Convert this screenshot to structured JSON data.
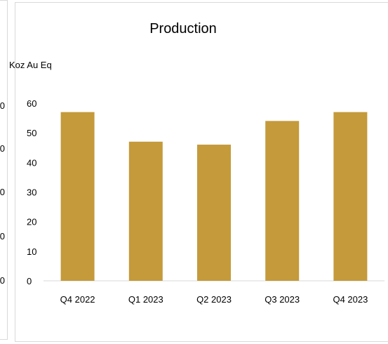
{
  "left_chart_partial": {
    "tick_labels": [
      "0",
      "0",
      "0",
      "0",
      "0"
    ]
  },
  "chart_data": {
    "type": "bar",
    "title": "Production",
    "ylabel": "Koz Au Eq",
    "xlabel": "",
    "categories": [
      "Q4 2022",
      "Q1 2023",
      "Q2 2023",
      "Q3 2023",
      "Q4 2023"
    ],
    "values": [
      57,
      47,
      46,
      54,
      57
    ],
    "ylim": [
      0,
      60
    ],
    "yticks": [
      0,
      10,
      20,
      30,
      40,
      50,
      60
    ],
    "grid": false,
    "legend": "none",
    "bar_color": "#c49a3b",
    "axis_color": "#d9d9d9"
  }
}
